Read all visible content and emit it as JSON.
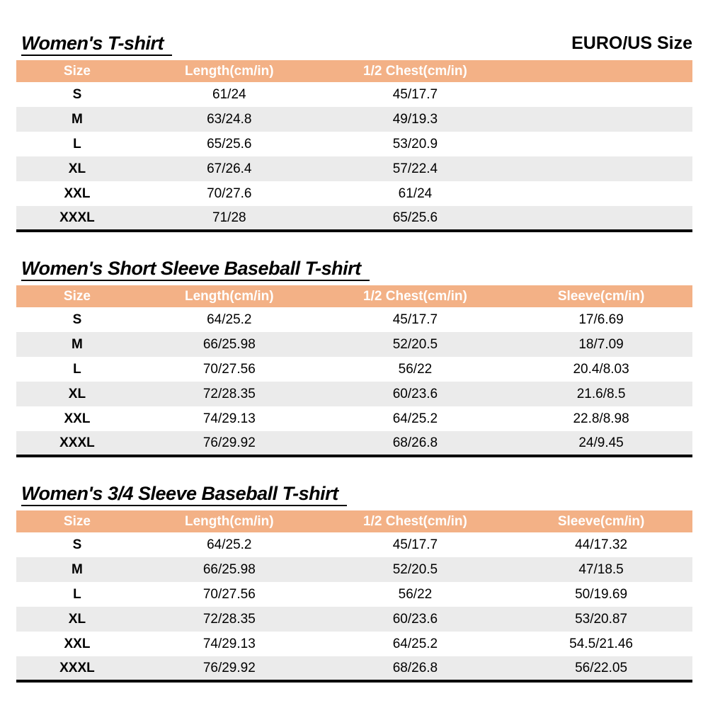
{
  "page": {
    "size_standard": "EURO/US Size"
  },
  "colors": {
    "header_bg": "#F3B186",
    "stripe_bg": "#EBEBEB",
    "rule_color": "#000000",
    "header_text": "#FFFFFF"
  },
  "tables": [
    {
      "title": "Women's T-shirt",
      "columns": [
        "Size",
        "Length(cm/in)",
        "1/2 Chest(cm/in)"
      ],
      "rows": [
        [
          "S",
          "61/24",
          "45/17.7"
        ],
        [
          "M",
          "63/24.8",
          "49/19.3"
        ],
        [
          "L",
          "65/25.6",
          "53/20.9"
        ],
        [
          "XL",
          "67/26.4",
          "57/22.4"
        ],
        [
          "XXL",
          "70/27.6",
          "61/24"
        ],
        [
          "XXXL",
          "71/28",
          "65/25.6"
        ]
      ]
    },
    {
      "title": "Women's Short Sleeve Baseball T-shirt",
      "columns": [
        "Size",
        "Length(cm/in)",
        "1/2 Chest(cm/in)",
        "Sleeve(cm/in)"
      ],
      "rows": [
        [
          "S",
          "64/25.2",
          "45/17.7",
          "17/6.69"
        ],
        [
          "M",
          "66/25.98",
          "52/20.5",
          "18/7.09"
        ],
        [
          "L",
          "70/27.56",
          "56/22",
          "20.4/8.03"
        ],
        [
          "XL",
          "72/28.35",
          "60/23.6",
          "21.6/8.5"
        ],
        [
          "XXL",
          "74/29.13",
          "64/25.2",
          "22.8/8.98"
        ],
        [
          "XXXL",
          "76/29.92",
          "68/26.8",
          "24/9.45"
        ]
      ]
    },
    {
      "title": "Women's 3/4 Sleeve Baseball T-shirt",
      "columns": [
        "Size",
        "Length(cm/in)",
        "1/2 Chest(cm/in)",
        "Sleeve(cm/in)"
      ],
      "rows": [
        [
          "S",
          "64/25.2",
          "45/17.7",
          "44/17.32"
        ],
        [
          "M",
          "66/25.98",
          "52/20.5",
          "47/18.5"
        ],
        [
          "L",
          "70/27.56",
          "56/22",
          "50/19.69"
        ],
        [
          "XL",
          "72/28.35",
          "60/23.6",
          "53/20.87"
        ],
        [
          "XXL",
          "74/29.13",
          "64/25.2",
          "54.5/21.46"
        ],
        [
          "XXXL",
          "76/29.92",
          "68/26.8",
          "56/22.05"
        ]
      ]
    }
  ]
}
